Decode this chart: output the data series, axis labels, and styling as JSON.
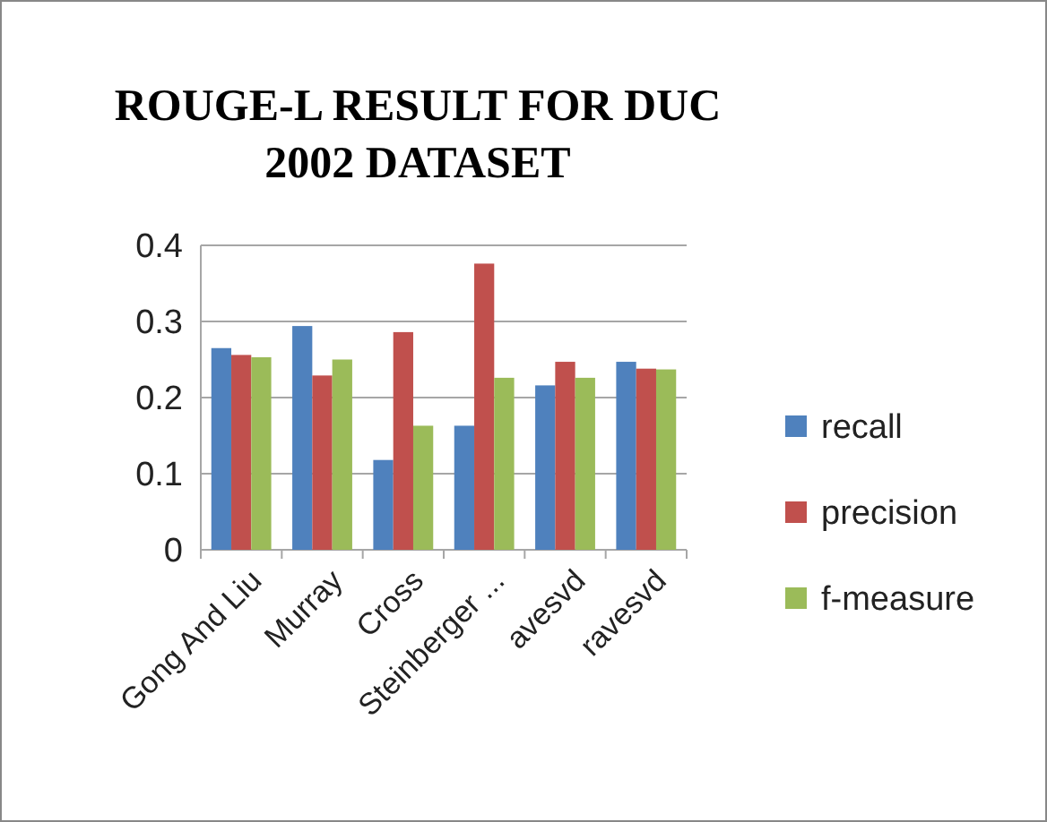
{
  "chart_data": {
    "type": "bar",
    "title": "ROUGE-L RESULT FOR DUC 2002 DATASET",
    "categories": [
      "Gong And Liu",
      "Murray",
      "Cross",
      "Steinberger ...",
      "avesvd",
      "ravesvd"
    ],
    "series": [
      {
        "name": "recall",
        "color": "#4f81bd",
        "values": [
          0.265,
          0.294,
          0.118,
          0.163,
          0.216,
          0.247
        ]
      },
      {
        "name": "precision",
        "color": "#c0504d",
        "values": [
          0.256,
          0.229,
          0.286,
          0.376,
          0.247,
          0.238
        ]
      },
      {
        "name": "f-measure",
        "color": "#9bbb59",
        "values": [
          0.253,
          0.25,
          0.163,
          0.226,
          0.226,
          0.237
        ]
      }
    ],
    "ylim": [
      0,
      0.4
    ],
    "yticks": [
      0,
      0.1,
      0.2,
      0.3,
      0.4
    ],
    "grid": "y",
    "legend": "right"
  }
}
